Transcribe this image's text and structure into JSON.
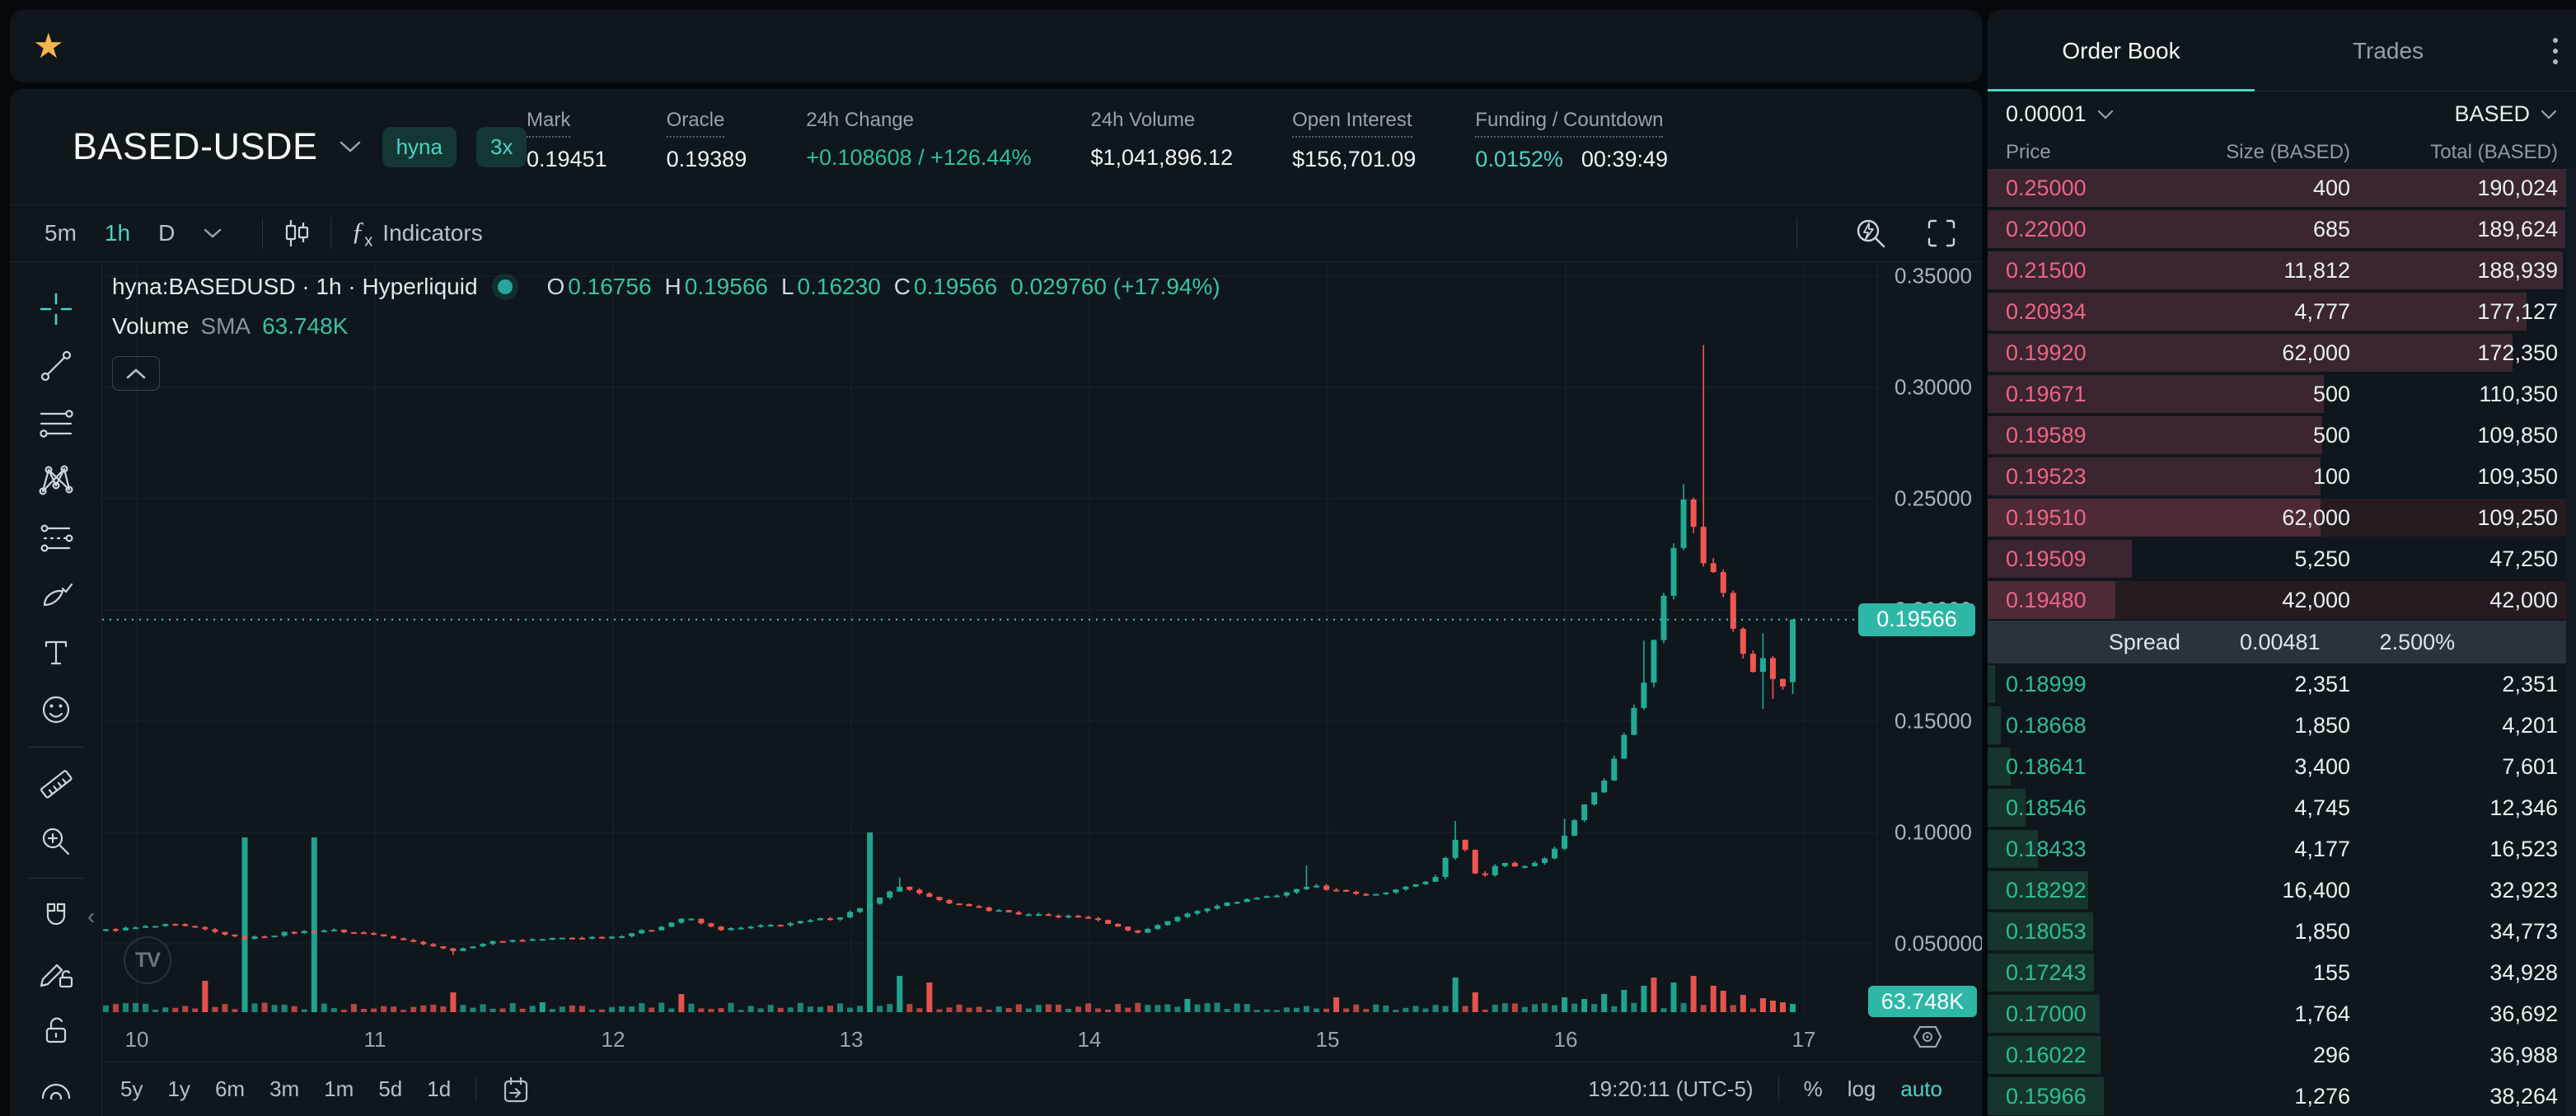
{
  "topbar": {
    "star_icon": "star-icon",
    "pair": "BASED-USDE",
    "badges": [
      "hyna",
      "3x"
    ],
    "stats": [
      {
        "label": "Mark",
        "dotted": true,
        "parts": [
          {
            "t": "0.19451",
            "c": "white"
          }
        ]
      },
      {
        "label": "Oracle",
        "dotted": true,
        "parts": [
          {
            "t": "0.19389",
            "c": "white"
          }
        ]
      },
      {
        "label": "24h Change",
        "dotted": false,
        "parts": [
          {
            "t": "+0.108608 / +126.44%",
            "c": "green"
          }
        ]
      },
      {
        "label": "24h Volume",
        "dotted": false,
        "parts": [
          {
            "t": "$1,041,896.12",
            "c": "white"
          }
        ]
      },
      {
        "label": "Open Interest",
        "dotted": true,
        "parts": [
          {
            "t": "$156,701.09",
            "c": "white"
          }
        ]
      },
      {
        "label": "Funding / Countdown",
        "dotted": true,
        "parts": [
          {
            "t": "0.0152%",
            "c": "teal"
          },
          {
            "t": "00:39:49",
            "c": "white"
          }
        ]
      }
    ]
  },
  "chart_toolbar": {
    "intervals": [
      "5m",
      "1h",
      "D"
    ],
    "active_interval": "1h",
    "indicators_label": "Indicators"
  },
  "legend": {
    "symbol_line": "hyna:BASEDUSD · 1h · Hyperliquid",
    "ohlc": [
      {
        "k": "O",
        "v": "0.16756"
      },
      {
        "k": "H",
        "v": "0.19566"
      },
      {
        "k": "L",
        "v": "0.16230"
      },
      {
        "k": "C",
        "v": "0.19566"
      }
    ],
    "change": "0.029760 (+17.94%)",
    "volume_title": "Volume",
    "sma_label": "SMA",
    "volume_value": "63.748K"
  },
  "left_tools": [
    "crosshair",
    "trend-line",
    "horizontal-line",
    "xabcd-pattern",
    "trend-fib",
    "brush",
    "text",
    "emoji",
    "divider",
    "ruler",
    "zoom-in",
    "divider",
    "magnet",
    "drawing-lock",
    "lock-all",
    "hide-drawings"
  ],
  "chart_data": {
    "type": "candlestick",
    "symbol": "hyna:BASEDUSD",
    "interval": "1h",
    "exchange": "Hyperliquid",
    "y_ticks": [
      {
        "label": "0.35000",
        "p": 0.35
      },
      {
        "label": "0.30000",
        "p": 0.3
      },
      {
        "label": "0.25000",
        "p": 0.25
      },
      {
        "label": "0.20000",
        "p": 0.2
      },
      {
        "label": "0.15000",
        "p": 0.15
      },
      {
        "label": "0.10000",
        "p": 0.1
      },
      {
        "label": "0.050000",
        "p": 0.05
      }
    ],
    "x_ticks": [
      {
        "label": "10",
        "day": 10
      },
      {
        "label": "11",
        "day": 11
      },
      {
        "label": "12",
        "day": 12
      },
      {
        "label": "13",
        "day": 13
      },
      {
        "label": "14",
        "day": 14
      },
      {
        "label": "15",
        "day": 15
      },
      {
        "label": "16",
        "day": 16
      },
      {
        "label": "17",
        "day": 17
      }
    ],
    "price_line": {
      "price": 0.19566,
      "label": "0.19566"
    },
    "volume_axis_label": "63.748K",
    "last_candle": {
      "o": 0.16756,
      "h": 0.19566,
      "l": 0.1623,
      "c": 0.19566
    },
    "anchors": [
      [
        9.85,
        0.056
      ],
      [
        10.0,
        0.0572
      ],
      [
        10.15,
        0.0585
      ],
      [
        10.3,
        0.056
      ],
      [
        10.45,
        0.0522
      ],
      [
        10.62,
        0.0548
      ],
      [
        10.8,
        0.0562
      ],
      [
        11.0,
        0.0542
      ],
      [
        11.2,
        0.05
      ],
      [
        11.33,
        0.0468
      ],
      [
        11.5,
        0.0512
      ],
      [
        11.8,
        0.0526
      ],
      [
        12.0,
        0.0532
      ],
      [
        12.18,
        0.0568
      ],
      [
        12.3,
        0.0618
      ],
      [
        12.45,
        0.0562
      ],
      [
        12.62,
        0.0578
      ],
      [
        12.8,
        0.0598
      ],
      [
        12.95,
        0.0622
      ],
      [
        13.08,
        0.068
      ],
      [
        13.2,
        0.0758
      ],
      [
        13.33,
        0.0708
      ],
      [
        13.5,
        0.0666
      ],
      [
        13.75,
        0.0628
      ],
      [
        14.0,
        0.0618
      ],
      [
        14.2,
        0.0548
      ],
      [
        14.4,
        0.0632
      ],
      [
        14.6,
        0.069
      ],
      [
        14.8,
        0.0722
      ],
      [
        14.92,
        0.076
      ],
      [
        15.05,
        0.0742
      ],
      [
        15.18,
        0.0712
      ],
      [
        15.32,
        0.0752
      ],
      [
        15.45,
        0.0792
      ],
      [
        15.55,
        0.0995
      ],
      [
        15.63,
        0.0792
      ],
      [
        15.72,
        0.0862
      ],
      [
        15.82,
        0.0845
      ],
      [
        15.92,
        0.0885
      ],
      [
        16.0,
        0.0992
      ],
      [
        16.08,
        0.113
      ],
      [
        16.17,
        0.1245
      ],
      [
        16.25,
        0.1455
      ],
      [
        16.33,
        0.168
      ],
      [
        16.42,
        0.21
      ],
      [
        16.5,
        0.253
      ],
      [
        16.58,
        0.22
      ],
      [
        16.64,
        0.216
      ],
      [
        16.7,
        0.1925
      ],
      [
        16.78,
        0.1715
      ],
      [
        16.83,
        0.179
      ],
      [
        16.88,
        0.1662
      ],
      [
        16.93,
        0.1655
      ],
      [
        16.97,
        0.19566
      ]
    ],
    "wick_overrides": [
      {
        "day": 11.33,
        "low": 0.0449
      },
      {
        "day": 13.2,
        "high": 0.0798
      },
      {
        "day": 14.92,
        "high": 0.0852
      },
      {
        "day": 15.55,
        "high": 0.1052
      },
      {
        "day": 16.0,
        "high": 0.1062
      },
      {
        "day": 16.33,
        "high": 0.1862
      },
      {
        "day": 16.5,
        "high": 0.2565
      },
      {
        "day": 16.58,
        "high": 0.319
      },
      {
        "day": 16.83,
        "high": 0.1895,
        "low": 0.1556
      },
      {
        "day": 16.88,
        "low": 0.16
      }
    ],
    "volume_spikes": [
      [
        10.3,
        38,
        "r"
      ],
      [
        10.47,
        212,
        "g"
      ],
      [
        10.76,
        212,
        "g"
      ],
      [
        11.33,
        24,
        "r"
      ],
      [
        11.7,
        12,
        "g"
      ],
      [
        12.3,
        22,
        "r"
      ],
      [
        13.08,
        218,
        "g"
      ],
      [
        13.22,
        44,
        "g"
      ],
      [
        13.33,
        36,
        "r"
      ],
      [
        14.4,
        16,
        "g"
      ],
      [
        15.05,
        18,
        "r"
      ],
      [
        15.55,
        42,
        "g"
      ],
      [
        15.63,
        24,
        "r"
      ],
      [
        16.0,
        18,
        "g"
      ],
      [
        16.08,
        16,
        "g"
      ],
      [
        16.17,
        22,
        "g"
      ],
      [
        16.25,
        27,
        "g"
      ],
      [
        16.33,
        32,
        "g"
      ],
      [
        16.38,
        42,
        "r"
      ],
      [
        16.46,
        36,
        "g"
      ],
      [
        16.54,
        44,
        "r"
      ],
      [
        16.6,
        32,
        "r"
      ],
      [
        16.67,
        26,
        "r"
      ],
      [
        16.74,
        21,
        "r"
      ],
      [
        16.81,
        17,
        "r"
      ],
      [
        16.88,
        14,
        "r"
      ],
      [
        16.93,
        12,
        "r"
      ],
      [
        16.97,
        10,
        "g"
      ]
    ]
  },
  "bottom_toolbar": {
    "ranges": [
      "5y",
      "1y",
      "6m",
      "3m",
      "1m",
      "5d",
      "1d"
    ],
    "time": "19:20:11 (UTC-5)",
    "percent": "%",
    "log": "log",
    "auto": "auto"
  },
  "orderbook": {
    "tabs": [
      "Order Book",
      "Trades"
    ],
    "active_tab": "Order Book",
    "tick_size": "0.00001",
    "unit": "BASED",
    "columns": [
      "Price",
      "Size (BASED)",
      "Total (BASED)"
    ],
    "max_total": 190024,
    "asks": [
      {
        "price": "0.25000",
        "size": "400",
        "total": "190,024"
      },
      {
        "price": "0.22000",
        "size": "685",
        "total": "189,624"
      },
      {
        "price": "0.21500",
        "size": "11,812",
        "total": "188,939"
      },
      {
        "price": "0.20934",
        "size": "4,777",
        "total": "177,127"
      },
      {
        "price": "0.19920",
        "size": "62,000",
        "total": "172,350"
      },
      {
        "price": "0.19671",
        "size": "500",
        "total": "110,350"
      },
      {
        "price": "0.19589",
        "size": "500",
        "total": "109,850"
      },
      {
        "price": "0.19523",
        "size": "100",
        "total": "109,350"
      },
      {
        "price": "0.19510",
        "size": "62,000",
        "total": "109,250",
        "flash": true
      },
      {
        "price": "0.19509",
        "size": "5,250",
        "total": "47,250"
      },
      {
        "price": "0.19480",
        "size": "42,000",
        "total": "42,000",
        "flash": true
      }
    ],
    "spread": {
      "label": "Spread",
      "value": "0.00481",
      "percent": "2.500%"
    },
    "bids": [
      {
        "price": "0.18999",
        "size": "2,351",
        "total": "2,351"
      },
      {
        "price": "0.18668",
        "size": "1,850",
        "total": "4,201"
      },
      {
        "price": "0.18641",
        "size": "3,400",
        "total": "7,601"
      },
      {
        "price": "0.18546",
        "size": "4,745",
        "total": "12,346"
      },
      {
        "price": "0.18433",
        "size": "4,177",
        "total": "16,523"
      },
      {
        "price": "0.18292",
        "size": "16,400",
        "total": "32,923"
      },
      {
        "price": "0.18053",
        "size": "1,850",
        "total": "34,773"
      },
      {
        "price": "0.17243",
        "size": "155",
        "total": "34,928"
      },
      {
        "price": "0.17000",
        "size": "1,764",
        "total": "36,692"
      },
      {
        "price": "0.16022",
        "size": "296",
        "total": "36,988"
      },
      {
        "price": "0.15966",
        "size": "1,276",
        "total": "38,264"
      }
    ]
  }
}
